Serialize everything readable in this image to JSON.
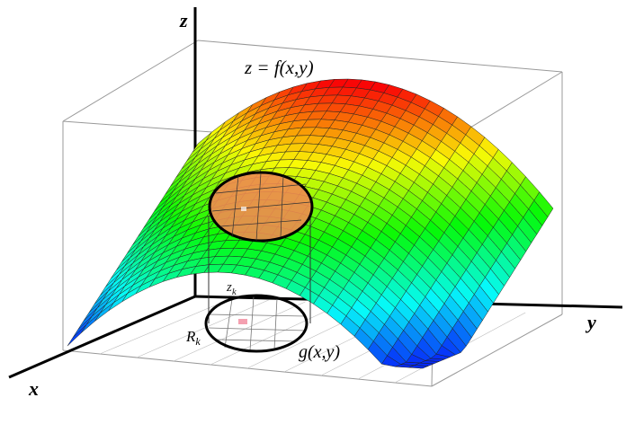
{
  "labels": {
    "z_axis": "z",
    "x_axis": "x",
    "y_axis": "y",
    "surface": "z = f(x,y)",
    "height": {
      "base": "z",
      "sub": "k"
    },
    "region": {
      "base": "R",
      "sub": "k"
    },
    "projection": "g(x,y)"
  }
}
